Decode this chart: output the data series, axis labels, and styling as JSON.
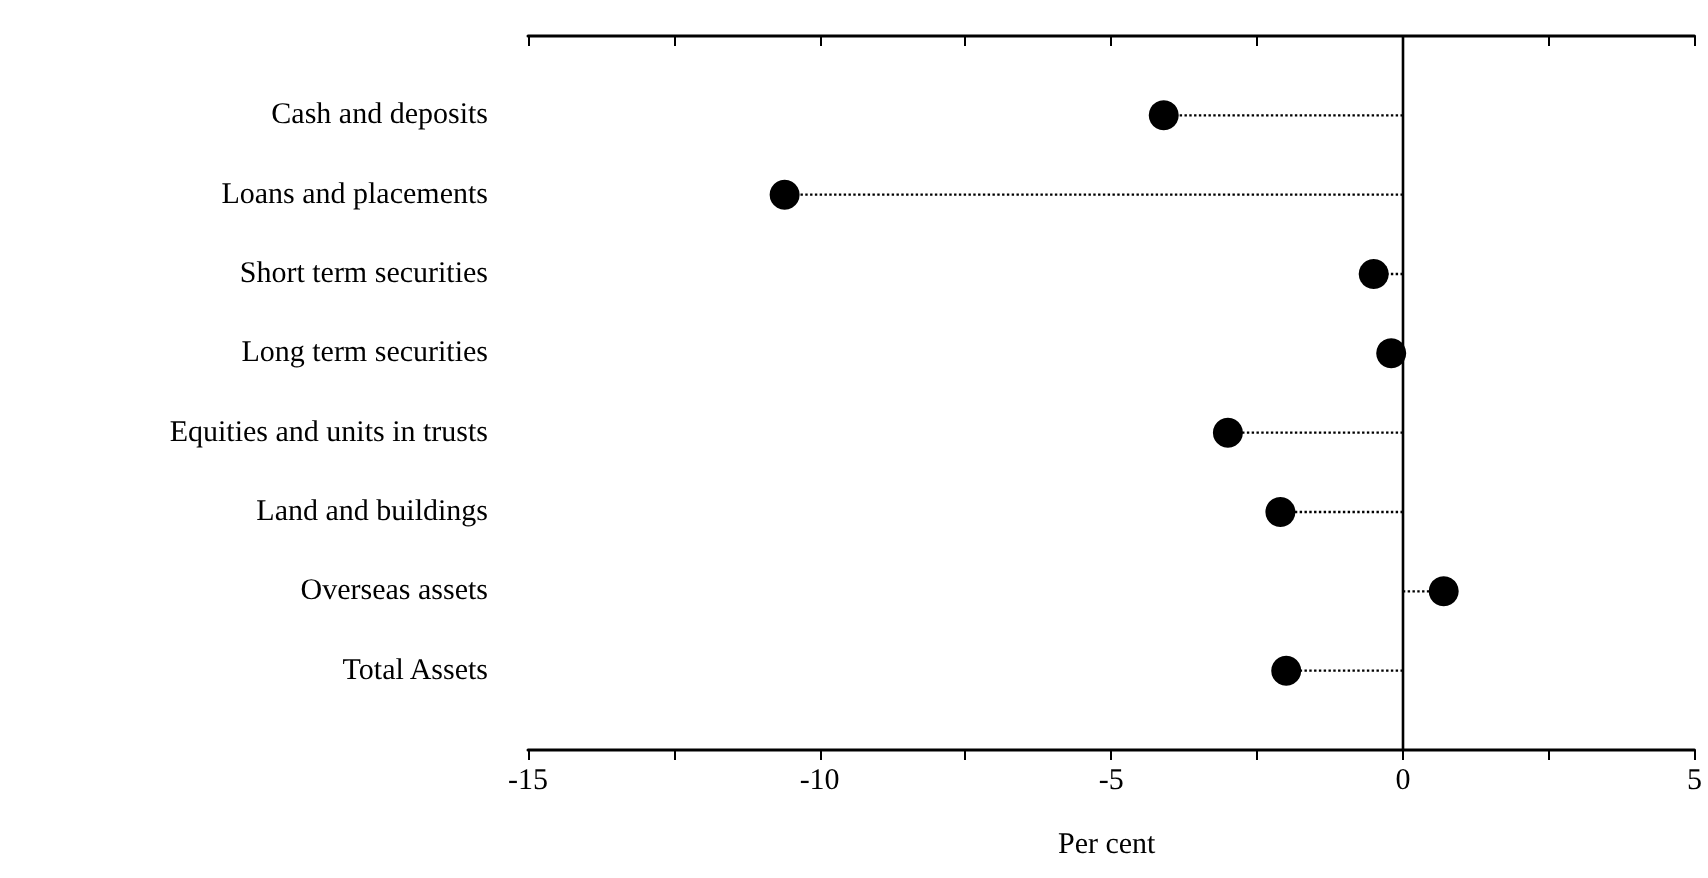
{
  "chart_data": {
    "type": "lollipop",
    "orientation": "horizontal",
    "xlabel": "Per cent",
    "categories": [
      "Cash and deposits",
      "Loans and placements",
      "Short term securities",
      "Long term securities",
      "Equities and units in trusts",
      "Land and buildings",
      "Overseas assets",
      "Total Assets"
    ],
    "values": [
      -4.1,
      -10.6,
      -0.5,
      -0.2,
      -3.0,
      -2.1,
      0.7,
      -2.0
    ],
    "color": "#000000",
    "marker": "circle",
    "line_style": "dotted",
    "grid": false,
    "xlim": [
      -15,
      5
    ],
    "xticks": [
      -15,
      {
        "value": -12.5,
        "label": null
      },
      -10,
      {
        "value": -7.5,
        "label": null
      },
      -5,
      {
        "value": -2.5,
        "label": null
      },
      0,
      {
        "value": 2.5,
        "label": null
      },
      5
    ],
    "ref_lines": [
      {
        "axis": "x",
        "value": 0,
        "label": null,
        "color": "#000000",
        "line_style": "solid"
      }
    ]
  }
}
